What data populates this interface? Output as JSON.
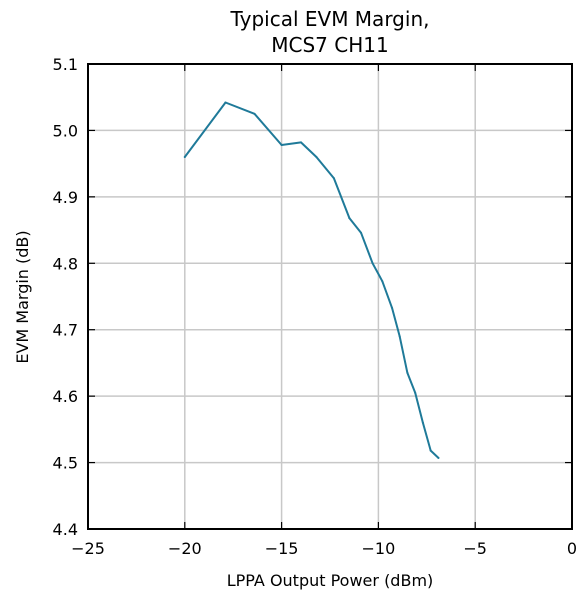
{
  "chart_data": {
    "type": "line",
    "title": "Typical EVM Margin,\nMCS7 CH11",
    "title_lines": [
      "Typical EVM Margin,",
      "MCS7 CH11"
    ],
    "xlabel": "LPPA Output Power (dBm)",
    "ylabel": "EVM Margin (dB)",
    "xlim": [
      -25,
      0
    ],
    "ylim": [
      4.4,
      5.1
    ],
    "xticks": [
      -25,
      -20,
      -15,
      -10,
      -5,
      0
    ],
    "xtick_labels": [
      "−25",
      "−20",
      "−15",
      "−10",
      "−5",
      "0"
    ],
    "yticks": [
      4.4,
      4.5,
      4.6,
      4.7,
      4.8,
      4.9,
      5.0,
      5.1
    ],
    "ytick_labels": [
      "4.4",
      "4.5",
      "4.6",
      "4.7",
      "4.8",
      "4.9",
      "5.0",
      "5.1"
    ],
    "grid": true,
    "legend": "none",
    "series": [
      {
        "color": "#1f7a99",
        "x": [
          -20.0,
          -17.9,
          -16.4,
          -15.0,
          -14.0,
          -13.2,
          -12.3,
          -11.5,
          -10.9,
          -10.3,
          -9.8,
          -9.3,
          -8.9,
          -8.5,
          -8.1,
          -7.7,
          -7.3,
          -6.9
        ],
        "y": [
          4.96,
          5.042,
          5.025,
          4.978,
          4.982,
          4.96,
          4.928,
          4.868,
          4.846,
          4.8,
          4.773,
          4.733,
          4.69,
          4.635,
          4.605,
          4.56,
          4.518,
          4.507
        ]
      }
    ]
  }
}
